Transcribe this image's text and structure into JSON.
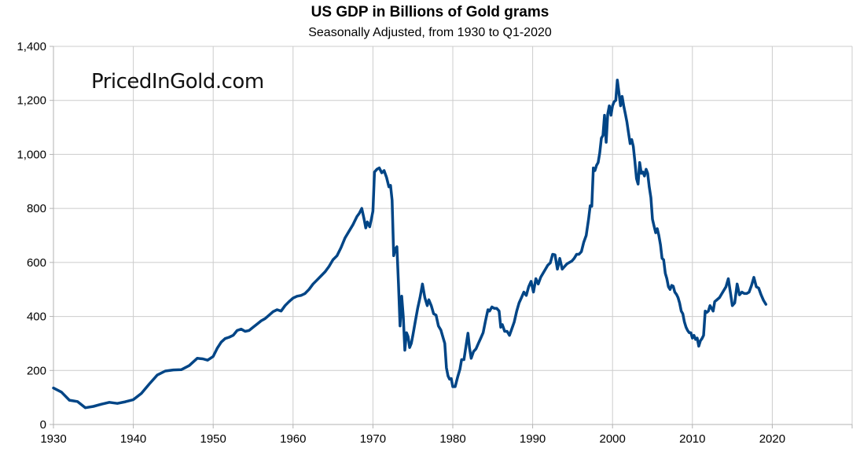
{
  "chart_data": {
    "type": "line",
    "title": "US GDP in Billions of Gold grams",
    "subtitle": "Seasonally Adjusted, from 1930 to Q1-2020",
    "watermark": "PricedInGold.com",
    "xlabel": "",
    "ylabel": "",
    "xlim": [
      1930,
      2030
    ],
    "ylim": [
      0,
      1400
    ],
    "x_ticks": [
      1930,
      1940,
      1950,
      1960,
      1970,
      1980,
      1990,
      2000,
      2010,
      2020
    ],
    "y_ticks": [
      0,
      200,
      400,
      600,
      800,
      1000,
      1200,
      1400
    ],
    "x_tick_labels": [
      "1930",
      "1940",
      "1950",
      "1960",
      "1970",
      "1980",
      "1990",
      "2000",
      "2010",
      "2020"
    ],
    "y_tick_labels": [
      "0",
      "200",
      "400",
      "600",
      "800",
      "1,000",
      "1,200",
      "1,400"
    ],
    "grid": true,
    "legend": "none",
    "series": [
      {
        "color": "#004586",
        "points": [
          [
            1930,
            135
          ],
          [
            1931,
            120
          ],
          [
            1932,
            90
          ],
          [
            1933,
            85
          ],
          [
            1934,
            62
          ],
          [
            1935,
            67
          ],
          [
            1936,
            75
          ],
          [
            1937,
            82
          ],
          [
            1938,
            78
          ],
          [
            1939,
            84
          ],
          [
            1940,
            92
          ],
          [
            1941,
            115
          ],
          [
            1942,
            150
          ],
          [
            1943,
            183
          ],
          [
            1944,
            198
          ],
          [
            1945,
            202
          ],
          [
            1946,
            203
          ],
          [
            1947,
            218
          ],
          [
            1948,
            245
          ],
          [
            1948.7,
            243
          ],
          [
            1949.3,
            238
          ],
          [
            1950,
            252
          ],
          [
            1950.5,
            282
          ],
          [
            1951,
            305
          ],
          [
            1951.5,
            318
          ],
          [
            1952,
            323
          ],
          [
            1952.5,
            330
          ],
          [
            1953,
            348
          ],
          [
            1953.5,
            353
          ],
          [
            1954,
            345
          ],
          [
            1954.5,
            348
          ],
          [
            1955,
            360
          ],
          [
            1955.5,
            372
          ],
          [
            1956,
            384
          ],
          [
            1956.5,
            392
          ],
          [
            1957,
            405
          ],
          [
            1957.5,
            418
          ],
          [
            1958,
            425
          ],
          [
            1958.5,
            420
          ],
          [
            1959,
            440
          ],
          [
            1959.5,
            455
          ],
          [
            1960,
            468
          ],
          [
            1960.5,
            475
          ],
          [
            1961,
            478
          ],
          [
            1961.5,
            485
          ],
          [
            1962,
            500
          ],
          [
            1962.5,
            520
          ],
          [
            1963,
            535
          ],
          [
            1963.5,
            550
          ],
          [
            1964,
            565
          ],
          [
            1964.5,
            585
          ],
          [
            1965,
            610
          ],
          [
            1965.5,
            625
          ],
          [
            1966,
            655
          ],
          [
            1966.5,
            690
          ],
          [
            1967,
            715
          ],
          [
            1967.5,
            740
          ],
          [
            1968,
            770
          ],
          [
            1968.3,
            782
          ],
          [
            1968.6,
            800
          ],
          [
            1968.9,
            760
          ],
          [
            1969.1,
            728
          ],
          [
            1969.3,
            750
          ],
          [
            1969.6,
            732
          ],
          [
            1969.8,
            760
          ],
          [
            1970,
            790
          ],
          [
            1970.2,
            935
          ],
          [
            1970.5,
            945
          ],
          [
            1970.8,
            950
          ],
          [
            1971.1,
            932
          ],
          [
            1971.4,
            940
          ],
          [
            1971.7,
            915
          ],
          [
            1972,
            880
          ],
          [
            1972.2,
            885
          ],
          [
            1972.4,
            830
          ],
          [
            1972.6,
            625
          ],
          [
            1972.8,
            650
          ],
          [
            1973,
            658
          ],
          [
            1973.2,
            520
          ],
          [
            1973.4,
            365
          ],
          [
            1973.6,
            475
          ],
          [
            1973.8,
            400
          ],
          [
            1974,
            275
          ],
          [
            1974.2,
            340
          ],
          [
            1974.4,
            325
          ],
          [
            1974.6,
            285
          ],
          [
            1974.8,
            300
          ],
          [
            1975,
            330
          ],
          [
            1975.3,
            380
          ],
          [
            1975.6,
            430
          ],
          [
            1975.9,
            470
          ],
          [
            1976.2,
            520
          ],
          [
            1976.5,
            470
          ],
          [
            1976.8,
            440
          ],
          [
            1977,
            462
          ],
          [
            1977.3,
            440
          ],
          [
            1977.6,
            410
          ],
          [
            1977.9,
            405
          ],
          [
            1978.2,
            365
          ],
          [
            1978.5,
            350
          ],
          [
            1978.8,
            320
          ],
          [
            1979,
            300
          ],
          [
            1979.2,
            210
          ],
          [
            1979.4,
            180
          ],
          [
            1979.6,
            168
          ],
          [
            1979.8,
            170
          ],
          [
            1980,
            140
          ],
          [
            1980.3,
            140
          ],
          [
            1980.6,
            175
          ],
          [
            1980.9,
            205
          ],
          [
            1981.1,
            240
          ],
          [
            1981.4,
            240
          ],
          [
            1981.7,
            300
          ],
          [
            1981.9,
            338
          ],
          [
            1982.1,
            283
          ],
          [
            1982.3,
            245
          ],
          [
            1982.6,
            270
          ],
          [
            1982.9,
            280
          ],
          [
            1983.2,
            300
          ],
          [
            1983.5,
            320
          ],
          [
            1983.8,
            340
          ],
          [
            1984.1,
            385
          ],
          [
            1984.4,
            425
          ],
          [
            1984.6,
            420
          ],
          [
            1984.9,
            435
          ],
          [
            1985.2,
            430
          ],
          [
            1985.5,
            430
          ],
          [
            1985.8,
            420
          ],
          [
            1986,
            360
          ],
          [
            1986.2,
            370
          ],
          [
            1986.5,
            345
          ],
          [
            1986.8,
            345
          ],
          [
            1987.1,
            330
          ],
          [
            1987.4,
            355
          ],
          [
            1987.7,
            380
          ],
          [
            1988,
            420
          ],
          [
            1988.3,
            450
          ],
          [
            1988.6,
            470
          ],
          [
            1988.9,
            490
          ],
          [
            1989.2,
            478
          ],
          [
            1989.5,
            510
          ],
          [
            1989.8,
            530
          ],
          [
            1990.1,
            490
          ],
          [
            1990.4,
            540
          ],
          [
            1990.7,
            520
          ],
          [
            1991,
            545
          ],
          [
            1991.3,
            560
          ],
          [
            1991.6,
            575
          ],
          [
            1991.9,
            590
          ],
          [
            1992.2,
            598
          ],
          [
            1992.5,
            630
          ],
          [
            1992.8,
            628
          ],
          [
            1993.1,
            575
          ],
          [
            1993.4,
            615
          ],
          [
            1993.7,
            575
          ],
          [
            1994,
            585
          ],
          [
            1994.3,
            595
          ],
          [
            1994.6,
            600
          ],
          [
            1994.9,
            605
          ],
          [
            1995.2,
            615
          ],
          [
            1995.5,
            630
          ],
          [
            1995.8,
            630
          ],
          [
            1996.1,
            640
          ],
          [
            1996.4,
            675
          ],
          [
            1996.7,
            700
          ],
          [
            1997,
            760
          ],
          [
            1997.2,
            810
          ],
          [
            1997.4,
            808
          ],
          [
            1997.6,
            950
          ],
          [
            1997.8,
            940
          ],
          [
            1998,
            960
          ],
          [
            1998.2,
            970
          ],
          [
            1998.4,
            1005
          ],
          [
            1998.6,
            1060
          ],
          [
            1998.8,
            1070
          ],
          [
            1999,
            1145
          ],
          [
            1999.2,
            1045
          ],
          [
            1999.4,
            1150
          ],
          [
            1999.6,
            1180
          ],
          [
            1999.8,
            1145
          ],
          [
            2000,
            1180
          ],
          [
            2000.2,
            1195
          ],
          [
            2000.4,
            1200
          ],
          [
            2000.6,
            1275
          ],
          [
            2000.8,
            1230
          ],
          [
            2001,
            1180
          ],
          [
            2001.2,
            1215
          ],
          [
            2001.4,
            1180
          ],
          [
            2001.6,
            1150
          ],
          [
            2001.8,
            1120
          ],
          [
            2002,
            1080
          ],
          [
            2002.2,
            1040
          ],
          [
            2002.4,
            1055
          ],
          [
            2002.6,
            1030
          ],
          [
            2002.8,
            975
          ],
          [
            2003,
            910
          ],
          [
            2003.2,
            890
          ],
          [
            2003.4,
            970
          ],
          [
            2003.6,
            930
          ],
          [
            2003.8,
            935
          ],
          [
            2004,
            920
          ],
          [
            2004.2,
            945
          ],
          [
            2004.4,
            930
          ],
          [
            2004.6,
            880
          ],
          [
            2004.8,
            840
          ],
          [
            2005,
            760
          ],
          [
            2005.2,
            735
          ],
          [
            2005.4,
            710
          ],
          [
            2005.6,
            725
          ],
          [
            2005.8,
            700
          ],
          [
            2006,
            665
          ],
          [
            2006.2,
            615
          ],
          [
            2006.4,
            610
          ],
          [
            2006.6,
            560
          ],
          [
            2006.8,
            540
          ],
          [
            2007,
            510
          ],
          [
            2007.2,
            500
          ],
          [
            2007.4,
            515
          ],
          [
            2007.6,
            512
          ],
          [
            2007.8,
            490
          ],
          [
            2008,
            482
          ],
          [
            2008.2,
            470
          ],
          [
            2008.4,
            450
          ],
          [
            2008.6,
            420
          ],
          [
            2008.8,
            410
          ],
          [
            2009,
            380
          ],
          [
            2009.2,
            360
          ],
          [
            2009.4,
            348
          ],
          [
            2009.6,
            340
          ],
          [
            2009.8,
            340
          ],
          [
            2010,
            320
          ],
          [
            2010.2,
            330
          ],
          [
            2010.4,
            315
          ],
          [
            2010.6,
            320
          ],
          [
            2010.8,
            290
          ],
          [
            2011,
            310
          ],
          [
            2011.2,
            318
          ],
          [
            2011.4,
            330
          ],
          [
            2011.6,
            420
          ],
          [
            2011.8,
            415
          ],
          [
            2012,
            420
          ],
          [
            2012.2,
            440
          ],
          [
            2012.4,
            430
          ],
          [
            2012.6,
            420
          ],
          [
            2012.8,
            455
          ],
          [
            2013,
            460
          ],
          [
            2013.4,
            470
          ],
          [
            2013.8,
            490
          ],
          [
            2014.2,
            510
          ],
          [
            2014.5,
            540
          ],
          [
            2014.8,
            480
          ],
          [
            2015,
            440
          ],
          [
            2015.3,
            450
          ],
          [
            2015.6,
            520
          ],
          [
            2015.9,
            480
          ],
          [
            2016.2,
            490
          ],
          [
            2016.5,
            485
          ],
          [
            2016.8,
            485
          ],
          [
            2017.1,
            490
          ],
          [
            2017.4,
            515
          ],
          [
            2017.7,
            545
          ],
          [
            2018,
            510
          ],
          [
            2018.3,
            505
          ],
          [
            2018.6,
            480
          ],
          [
            2018.9,
            460
          ],
          [
            2019.2,
            445
          ]
        ]
      }
    ]
  }
}
